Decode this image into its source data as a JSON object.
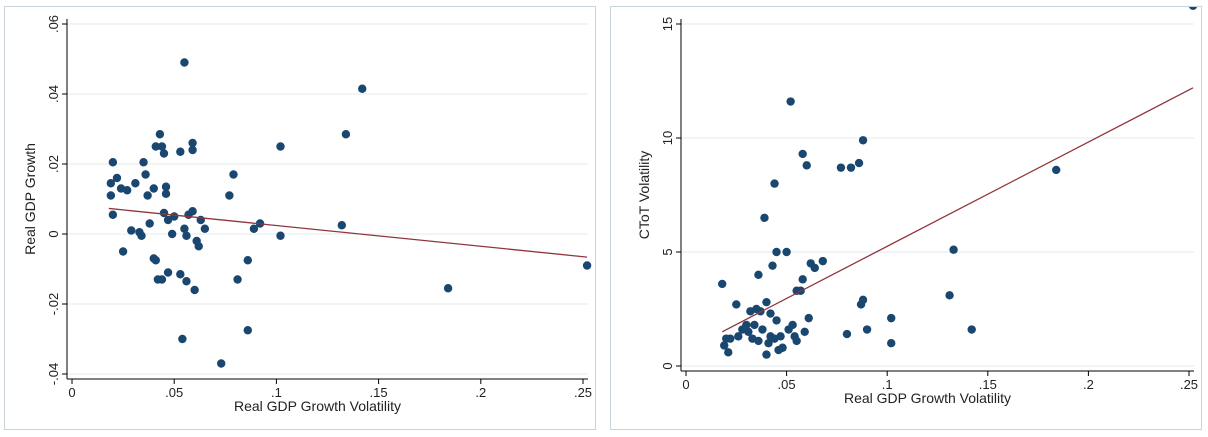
{
  "chart_data": [
    {
      "type": "scatter",
      "title": "",
      "xlabel": "Real GDP Growth Volatility",
      "ylabel": "Real GDP Growth",
      "xlim": [
        0,
        0.25
      ],
      "ylim": [
        -0.04,
        0.06
      ],
      "xticks": [
        0,
        0.05,
        0.1,
        0.15,
        0.2,
        0.25
      ],
      "xtick_labels": [
        "0",
        ".05",
        ".1",
        ".15",
        ".2",
        ".25"
      ],
      "yticks": [
        -0.04,
        -0.02,
        0,
        0.02,
        0.04,
        0.06
      ],
      "ytick_labels": [
        "-.04",
        "-.02",
        "0",
        ".02",
        ".04",
        ".06"
      ],
      "grid": "horizontal",
      "colors": {
        "marker": "#1a476f",
        "fit_line": "#90353b",
        "grid": "#e4ebf0"
      },
      "points": [
        [
          0.019,
          0.0145
        ],
        [
          0.02,
          0.0205
        ],
        [
          0.022,
          0.016
        ],
        [
          0.019,
          0.011
        ],
        [
          0.02,
          0.0055
        ],
        [
          0.024,
          0.013
        ],
        [
          0.027,
          0.0125
        ],
        [
          0.025,
          -0.005
        ],
        [
          0.029,
          0.001
        ],
        [
          0.031,
          0.0145
        ],
        [
          0.033,
          0.0005
        ],
        [
          0.034,
          -0.0005
        ],
        [
          0.035,
          0.0205
        ],
        [
          0.036,
          0.017
        ],
        [
          0.037,
          0.011
        ],
        [
          0.038,
          0.003
        ],
        [
          0.04,
          -0.007
        ],
        [
          0.041,
          -0.0075
        ],
        [
          0.041,
          0.025
        ],
        [
          0.04,
          0.013
        ],
        [
          0.042,
          -0.013
        ],
        [
          0.043,
          0.0285
        ],
        [
          0.044,
          0.025
        ],
        [
          0.044,
          -0.013
        ],
        [
          0.045,
          0.006
        ],
        [
          0.045,
          0.023
        ],
        [
          0.046,
          0.0135
        ],
        [
          0.046,
          0.0115
        ],
        [
          0.047,
          -0.011
        ],
        [
          0.047,
          0.004
        ],
        [
          0.049,
          0.0
        ],
        [
          0.05,
          0.005
        ],
        [
          0.053,
          0.0235
        ],
        [
          0.053,
          -0.0115
        ],
        [
          0.054,
          -0.03
        ],
        [
          0.055,
          0.0015
        ],
        [
          0.055,
          0.049
        ],
        [
          0.056,
          -0.0135
        ],
        [
          0.056,
          -0.0005
        ],
        [
          0.057,
          0.0055
        ],
        [
          0.059,
          0.024
        ],
        [
          0.059,
          0.026
        ],
        [
          0.059,
          0.0065
        ],
        [
          0.06,
          -0.016
        ],
        [
          0.061,
          -0.002
        ],
        [
          0.062,
          -0.0035
        ],
        [
          0.063,
          0.004
        ],
        [
          0.065,
          0.0015
        ],
        [
          0.073,
          -0.037
        ],
        [
          0.077,
          0.011
        ],
        [
          0.079,
          0.017
        ],
        [
          0.081,
          -0.013
        ],
        [
          0.086,
          -0.0075
        ],
        [
          0.086,
          -0.0275
        ],
        [
          0.089,
          0.0015
        ],
        [
          0.092,
          0.003
        ],
        [
          0.102,
          0.025
        ],
        [
          0.102,
          -0.0005
        ],
        [
          0.132,
          0.0025
        ],
        [
          0.134,
          0.0285
        ],
        [
          0.142,
          0.0415
        ],
        [
          0.184,
          -0.0155
        ],
        [
          0.252,
          -0.009
        ]
      ],
      "fit_line": [
        [
          0.018,
          0.0073
        ],
        [
          0.252,
          -0.0066
        ]
      ]
    },
    {
      "type": "scatter",
      "title": "",
      "xlabel": "Real GDP Growth Volatility",
      "ylabel": "CToT Volatility",
      "xlim": [
        0,
        0.25
      ],
      "ylim": [
        0,
        15
      ],
      "xticks": [
        0,
        0.05,
        0.1,
        0.15,
        0.2,
        0.25
      ],
      "xtick_labels": [
        "0",
        ".05",
        ".1",
        ".15",
        ".2",
        ".25"
      ],
      "yticks": [
        0,
        5,
        10,
        15
      ],
      "ytick_labels": [
        "0",
        "5",
        "10",
        "15"
      ],
      "grid": "horizontal",
      "colors": {
        "marker": "#1a476f",
        "fit_line": "#90353b",
        "grid": "#e4ebf0"
      },
      "points": [
        [
          0.018,
          3.6
        ],
        [
          0.019,
          0.9
        ],
        [
          0.02,
          1.2
        ],
        [
          0.021,
          0.6
        ],
        [
          0.022,
          1.2
        ],
        [
          0.025,
          2.7
        ],
        [
          0.026,
          1.3
        ],
        [
          0.028,
          1.6
        ],
        [
          0.03,
          1.8
        ],
        [
          0.031,
          1.5
        ],
        [
          0.032,
          2.4
        ],
        [
          0.033,
          1.2
        ],
        [
          0.034,
          1.8
        ],
        [
          0.035,
          2.5
        ],
        [
          0.036,
          4.0
        ],
        [
          0.036,
          1.1
        ],
        [
          0.037,
          2.4
        ],
        [
          0.038,
          1.6
        ],
        [
          0.039,
          6.5
        ],
        [
          0.04,
          0.5
        ],
        [
          0.04,
          2.8
        ],
        [
          0.041,
          1.0
        ],
        [
          0.042,
          2.3
        ],
        [
          0.042,
          1.3
        ],
        [
          0.043,
          4.4
        ],
        [
          0.044,
          8.0
        ],
        [
          0.044,
          1.2
        ],
        [
          0.045,
          2.0
        ],
        [
          0.045,
          5.0
        ],
        [
          0.046,
          0.7
        ],
        [
          0.047,
          1.3
        ],
        [
          0.048,
          0.8
        ],
        [
          0.05,
          5.0
        ],
        [
          0.051,
          1.6
        ],
        [
          0.052,
          11.6
        ],
        [
          0.053,
          1.8
        ],
        [
          0.054,
          1.3
        ],
        [
          0.055,
          3.3
        ],
        [
          0.055,
          1.1
        ],
        [
          0.057,
          3.3
        ],
        [
          0.058,
          9.3
        ],
        [
          0.058,
          3.8
        ],
        [
          0.059,
          1.5
        ],
        [
          0.06,
          8.8
        ],
        [
          0.061,
          2.1
        ],
        [
          0.062,
          4.5
        ],
        [
          0.064,
          4.3
        ],
        [
          0.068,
          4.6
        ],
        [
          0.077,
          8.7
        ],
        [
          0.08,
          1.4
        ],
        [
          0.082,
          8.7
        ],
        [
          0.086,
          8.9
        ],
        [
          0.087,
          2.7
        ],
        [
          0.088,
          9.9
        ],
        [
          0.088,
          2.9
        ],
        [
          0.09,
          1.6
        ],
        [
          0.102,
          2.1
        ],
        [
          0.102,
          1.0
        ],
        [
          0.131,
          3.1
        ],
        [
          0.133,
          5.1
        ],
        [
          0.142,
          1.6
        ],
        [
          0.184,
          8.6
        ],
        [
          0.252,
          15.8
        ]
      ],
      "fit_line": [
        [
          0.018,
          1.5
        ],
        [
          0.252,
          12.2
        ]
      ]
    }
  ]
}
